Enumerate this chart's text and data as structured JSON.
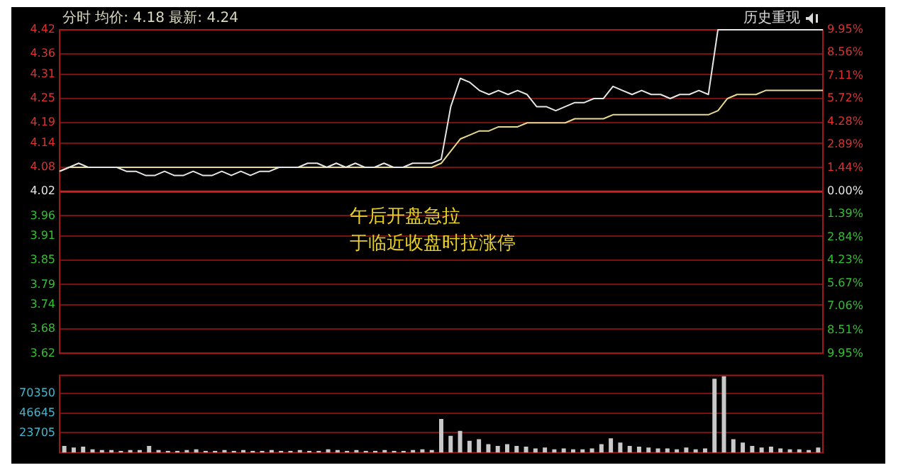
{
  "chart_data": [
    {
      "type": "line",
      "title": "分时 均价: 4.18 最新: 4.24",
      "subtitle": "历史重现",
      "annotations": [
        "午后开盘急拉",
        "于临近收盘时拉涨停"
      ],
      "categories": [
        null,
        null,
        null,
        null,
        null,
        null,
        null,
        null,
        null,
        null,
        null,
        null,
        null,
        null,
        null,
        null,
        null,
        null,
        null,
        null,
        null,
        null,
        null,
        null,
        null,
        null,
        null,
        null,
        null,
        null,
        null,
        null,
        null,
        null,
        null,
        null,
        null,
        null,
        null,
        null,
        null,
        null,
        null,
        null,
        null,
        null,
        null,
        null,
        null,
        null,
        null,
        null,
        null,
        null,
        null,
        null,
        null,
        null,
        null,
        null,
        null,
        null,
        null,
        null,
        null,
        null,
        null,
        null,
        null,
        null,
        null,
        null,
        null,
        null,
        null,
        null,
        null,
        null,
        null,
        null,
        null
      ],
      "series": [
        {
          "color": "#e6e6e6",
          "values": [
            4.07,
            4.08,
            4.09,
            4.08,
            4.08,
            4.08,
            4.08,
            4.07,
            4.07,
            4.06,
            4.06,
            4.07,
            4.06,
            4.06,
            4.07,
            4.06,
            4.06,
            4.07,
            4.06,
            4.07,
            4.06,
            4.07,
            4.07,
            4.08,
            4.08,
            4.08,
            4.09,
            4.09,
            4.08,
            4.09,
            4.08,
            4.09,
            4.08,
            4.08,
            4.09,
            4.08,
            4.08,
            4.09,
            4.09,
            4.09,
            4.1,
            4.23,
            4.3,
            4.29,
            4.27,
            4.26,
            4.27,
            4.26,
            4.27,
            4.26,
            4.23,
            4.23,
            4.22,
            4.23,
            4.24,
            4.24,
            4.25,
            4.25,
            4.28,
            4.27,
            4.26,
            4.27,
            4.26,
            4.26,
            4.25,
            4.26,
            4.26,
            4.27,
            4.26,
            4.42,
            4.42,
            4.42,
            4.42,
            4.42,
            4.42,
            4.42,
            4.42,
            4.42,
            4.42,
            4.42,
            4.42
          ]
        },
        {
          "color": "#e8d890",
          "values": [
            4.07,
            4.08,
            4.08,
            4.08,
            4.08,
            4.08,
            4.08,
            4.08,
            4.08,
            4.08,
            4.08,
            4.08,
            4.08,
            4.08,
            4.08,
            4.08,
            4.08,
            4.08,
            4.08,
            4.08,
            4.08,
            4.08,
            4.08,
            4.08,
            4.08,
            4.08,
            4.08,
            4.08,
            4.08,
            4.08,
            4.08,
            4.08,
            4.08,
            4.08,
            4.08,
            4.08,
            4.08,
            4.08,
            4.08,
            4.08,
            4.09,
            4.12,
            4.15,
            4.16,
            4.17,
            4.17,
            4.18,
            4.18,
            4.18,
            4.19,
            4.19,
            4.19,
            4.19,
            4.19,
            4.2,
            4.2,
            4.2,
            4.2,
            4.21,
            4.21,
            4.21,
            4.21,
            4.21,
            4.21,
            4.21,
            4.21,
            4.21,
            4.21,
            4.21,
            4.22,
            4.25,
            4.26,
            4.26,
            4.26,
            4.27,
            4.27,
            4.27,
            4.27,
            4.27,
            4.27,
            4.27
          ]
        }
      ],
      "ylim": [
        3.62,
        4.42
      ],
      "yticks": [
        4.42,
        4.36,
        4.31,
        4.25,
        4.19,
        4.14,
        4.08,
        4.02,
        3.96,
        3.91,
        3.85,
        3.79,
        3.74,
        3.68,
        3.62
      ],
      "y2lim": [
        -9.95,
        9.95
      ],
      "y2ticks": [
        {
          "value": 9.95,
          "label": "9.95%"
        },
        {
          "value": 8.56,
          "label": "8.56%"
        },
        {
          "value": 7.11,
          "label": "7.11%"
        },
        {
          "value": 5.72,
          "label": "5.72%"
        },
        {
          "value": 4.28,
          "label": "4.28%"
        },
        {
          "value": 2.89,
          "label": "2.89%"
        },
        {
          "value": 1.44,
          "label": "1.44%"
        },
        {
          "value": 0,
          "label": "0.00%"
        },
        {
          "value": -1.39,
          "label": "1.39%"
        },
        {
          "value": -2.84,
          "label": "2.84%"
        },
        {
          "value": -4.23,
          "label": "4.23%"
        },
        {
          "value": -5.67,
          "label": "5.67%"
        },
        {
          "value": -7.06,
          "label": "7.06%"
        },
        {
          "value": -8.51,
          "label": "8.51%"
        },
        {
          "value": -9.95,
          "label": "9.95%"
        }
      ],
      "ref_lines": [
        {
          "axis": "y",
          "value": 4.02,
          "color": "#d02020"
        }
      ],
      "grid": "y",
      "legend": false,
      "marker": "none",
      "line_style": "solid",
      "tick_labels": "y"
    },
    {
      "type": "bar",
      "categories": [
        null,
        null,
        null,
        null,
        null,
        null,
        null,
        null,
        null,
        null,
        null,
        null,
        null,
        null,
        null,
        null,
        null,
        null,
        null,
        null,
        null,
        null,
        null,
        null,
        null,
        null,
        null,
        null,
        null,
        null,
        null,
        null,
        null,
        null,
        null,
        null,
        null,
        null,
        null,
        null,
        null,
        null,
        null,
        null,
        null,
        null,
        null,
        null,
        null,
        null,
        null,
        null,
        null,
        null,
        null,
        null,
        null,
        null,
        null,
        null,
        null,
        null,
        null,
        null,
        null,
        null,
        null,
        null,
        null,
        null,
        null,
        null,
        null,
        null,
        null,
        null,
        null,
        null,
        null,
        null,
        null
      ],
      "values": [
        8000,
        6000,
        7000,
        4000,
        3000,
        3000,
        2000,
        3000,
        3000,
        8000,
        3000,
        2000,
        2000,
        3000,
        4000,
        2000,
        2000,
        3000,
        2000,
        3000,
        2000,
        2000,
        3000,
        2000,
        2000,
        3000,
        2000,
        2000,
        4000,
        3000,
        2000,
        3000,
        2000,
        2000,
        3000,
        2000,
        2000,
        3000,
        4000,
        3000,
        40000,
        20000,
        26000,
        14000,
        16000,
        10000,
        8000,
        10000,
        8000,
        7000,
        5000,
        6000,
        4000,
        5000,
        4000,
        4000,
        5000,
        10000,
        17000,
        12000,
        8000,
        7000,
        6000,
        5000,
        5000,
        4000,
        6000,
        4000,
        5000,
        88000,
        91000,
        16000,
        12000,
        8000,
        6000,
        7000,
        5000,
        4000,
        4000,
        3000,
        6000
      ],
      "color": "#c8c8c8",
      "ylim": [
        0,
        92000
      ],
      "yticks": [
        23705,
        46645,
        70350
      ],
      "grid": "y",
      "legend": false,
      "tick_labels": "y"
    }
  ]
}
